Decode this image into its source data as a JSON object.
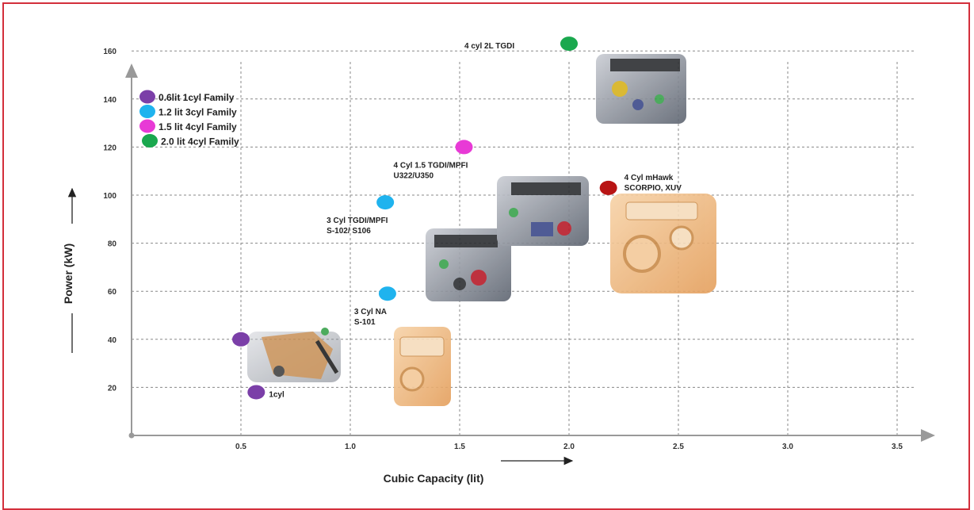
{
  "chart_data": {
    "type": "scatter",
    "xlabel": "Cubic Capacity (lit)",
    "ylabel": "Power (kW)",
    "xlim": [
      0,
      3.6
    ],
    "ylim": [
      0,
      160
    ],
    "x_ticks": [
      "0.5",
      "1.0",
      "1.5",
      "2.0",
      "2.5",
      "3.0",
      "3.5"
    ],
    "y_ticks": [
      "20",
      "40",
      "60",
      "80",
      "100",
      "120",
      "140",
      "160"
    ],
    "grid": true,
    "legend_position": "top-left",
    "series": [
      {
        "name": "0.6lit 1cyl Family",
        "color": "#7b3fa8",
        "points": [
          {
            "x": 0.5,
            "y": 40,
            "label": ""
          },
          {
            "x": 0.57,
            "y": 18,
            "label": "1cyl"
          }
        ]
      },
      {
        "name": "1.2 lit 3cyl Family",
        "color": "#1fb3ee",
        "points": [
          {
            "x": 1.16,
            "y": 97,
            "label": "3 Cyl TGDI/MPFI S-102/ S106"
          },
          {
            "x": 1.17,
            "y": 59,
            "label": "3 Cyl NA S-101"
          }
        ]
      },
      {
        "name": "1.5 lit 4cyl Family",
        "color": "#e83ad6",
        "points": [
          {
            "x": 1.52,
            "y": 120,
            "label": "4 Cyl 1.5 TGDI/MPFI U322/U350"
          }
        ]
      },
      {
        "name": "2.0 lit 4cyl Family",
        "color": "#1aa84e",
        "points": [
          {
            "x": 2.0,
            "y": 163,
            "label": "4 cyl 2L TGDI"
          }
        ]
      },
      {
        "name": "",
        "color": "#b81414",
        "points": [
          {
            "x": 2.18,
            "y": 103,
            "label": "4 Cyl mHawk SCORPIO, XUV"
          }
        ]
      }
    ],
    "annotations": []
  }
}
